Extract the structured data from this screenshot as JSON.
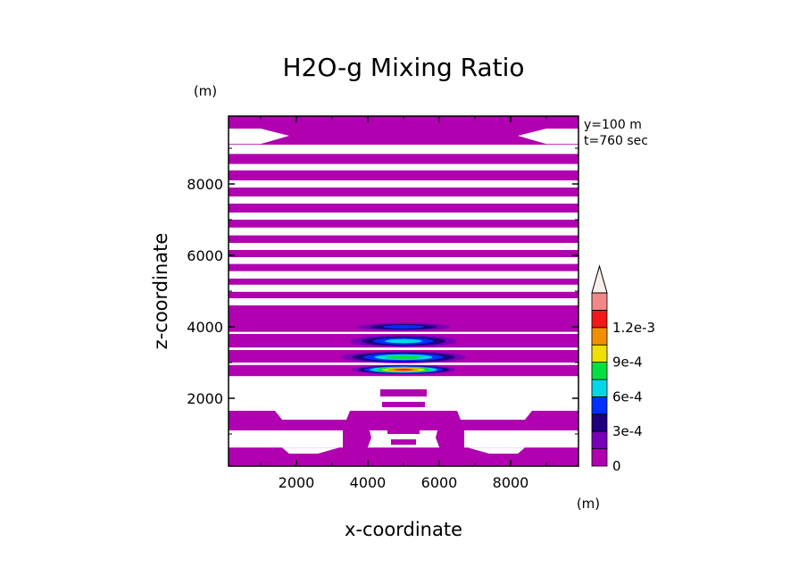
{
  "chart_data": {
    "type": "heatmap",
    "title": "H2O-g Mixing Ratio",
    "xlabel": "x-coordinate",
    "ylabel": "z-coordinate",
    "x_unit": "(m)",
    "y_unit": "(m)",
    "xlim": [
      100,
      9900
    ],
    "ylim": [
      100,
      9900
    ],
    "x_ticks": [
      2000,
      4000,
      6000,
      8000
    ],
    "y_ticks": [
      2000,
      4000,
      6000,
      8000
    ],
    "x_tick_labels": [
      "2000",
      "4000",
      "6000",
      "8000"
    ],
    "y_tick_labels": [
      "2000",
      "4000",
      "6000",
      "8000"
    ],
    "info": [
      "y=100 m",
      "t=760 sec"
    ],
    "colorbar": {
      "levels": [
        0,
        0.00015,
        0.0003,
        0.00045,
        0.0006,
        0.00075,
        0.0009,
        0.00105,
        0.0012,
        0.00135
      ],
      "colors": [
        "#b000b0",
        "#7a00b8",
        "#1e007e",
        "#0030ff",
        "#00d8e8",
        "#00e040",
        "#f0e000",
        "#f09000",
        "#f01818",
        "#f08888",
        "#f8f0e8"
      ],
      "tick_values": [
        0,
        0.0003,
        0.0006,
        0.0009,
        0.0012
      ],
      "tick_labels": [
        "0",
        "3e-4",
        "6e-4",
        "9e-4",
        "1.2e-3"
      ]
    },
    "fields": {
      "background_level": 0,
      "upper_bands": [
        {
          "z0": 9100,
          "z1": 9800,
          "level": 1
        },
        {
          "z0": 8560,
          "z1": 8840,
          "level": 1
        },
        {
          "z0": 8100,
          "z1": 8380,
          "level": 1
        },
        {
          "z0": 7650,
          "z1": 7900,
          "level": 1
        },
        {
          "z0": 7200,
          "z1": 7450,
          "level": 1
        },
        {
          "z0": 6780,
          "z1": 7000,
          "level": 1
        },
        {
          "z0": 6350,
          "z1": 6560,
          "level": 1
        },
        {
          "z0": 5950,
          "z1": 6150,
          "level": 1
        },
        {
          "z0": 5560,
          "z1": 5760,
          "level": 1
        },
        {
          "z0": 5180,
          "z1": 5350,
          "level": 1
        },
        {
          "z0": 4800,
          "z1": 4980,
          "level": 1
        },
        {
          "z0": 4420,
          "z1": 4600,
          "level": 1
        }
      ],
      "peaks": [
        {
          "z": 4000,
          "half_width_x": 1300,
          "half_height_z": 110,
          "max_level": 3
        },
        {
          "z": 3600,
          "half_width_x": 1500,
          "half_height_z": 170,
          "max_level": 4
        },
        {
          "z": 3150,
          "half_width_x": 1750,
          "half_height_z": 170,
          "max_level": 5
        },
        {
          "z": 2800,
          "half_width_x": 1450,
          "half_height_z": 130,
          "max_level": 8
        }
      ]
    }
  }
}
